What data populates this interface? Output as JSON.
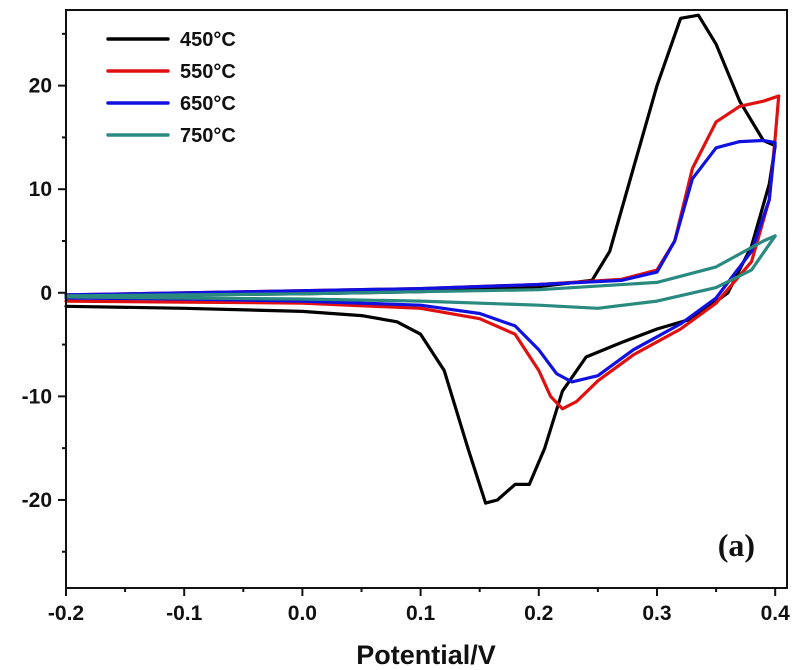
{
  "chart_data": {
    "type": "line",
    "title": "",
    "xlabel": "Potential/V",
    "ylabel": "",
    "panel_label": "(a)",
    "xlim": [
      -0.2,
      0.41
    ],
    "ylim": [
      -28.5,
      27.3
    ],
    "x_ticks": [
      -0.2,
      -0.1,
      0.0,
      0.1,
      0.2,
      0.3,
      0.4
    ],
    "x_tick_labels": [
      "-0.2",
      "-0.1",
      "0.0",
      "0.1",
      "0.2",
      "0.3",
      "0.4"
    ],
    "y_ticks": [
      -20,
      -10,
      0,
      10,
      20
    ],
    "y_tick_labels": [
      "-20",
      "-10",
      "0",
      "10",
      "20"
    ],
    "grid": false,
    "legend_position": "top-left",
    "series": [
      {
        "name": "450°C",
        "color": "#000000",
        "points": [
          [
            -0.2,
            -1.3
          ],
          [
            -0.1,
            -1.5
          ],
          [
            0.0,
            -1.8
          ],
          [
            0.05,
            -2.2
          ],
          [
            0.08,
            -2.8
          ],
          [
            0.1,
            -4.0
          ],
          [
            0.12,
            -7.5
          ],
          [
            0.14,
            -15.0
          ],
          [
            0.155,
            -20.3
          ],
          [
            0.165,
            -20.0
          ],
          [
            0.18,
            -18.5
          ],
          [
            0.192,
            -18.5
          ],
          [
            0.205,
            -15.0
          ],
          [
            0.22,
            -9.5
          ],
          [
            0.24,
            -6.2
          ],
          [
            0.27,
            -4.8
          ],
          [
            0.3,
            -3.5
          ],
          [
            0.33,
            -2.5
          ],
          [
            0.36,
            0.0
          ],
          [
            0.38,
            4.5
          ],
          [
            0.395,
            10.5
          ],
          [
            0.4,
            14.2
          ],
          [
            0.39,
            14.7
          ],
          [
            0.37,
            18.5
          ],
          [
            0.35,
            24.0
          ],
          [
            0.335,
            26.8
          ],
          [
            0.32,
            26.5
          ],
          [
            0.3,
            20.0
          ],
          [
            0.28,
            12.0
          ],
          [
            0.26,
            4.0
          ],
          [
            0.245,
            1.2
          ],
          [
            0.2,
            0.6
          ],
          [
            0.1,
            0.1
          ],
          [
            0.0,
            -0.1
          ],
          [
            -0.1,
            -0.2
          ],
          [
            -0.2,
            -0.3
          ]
        ]
      },
      {
        "name": "550°C",
        "color": "#e01010",
        "points": [
          [
            -0.2,
            -0.8
          ],
          [
            -0.1,
            -0.9
          ],
          [
            0.0,
            -1.0
          ],
          [
            0.1,
            -1.5
          ],
          [
            0.15,
            -2.5
          ],
          [
            0.18,
            -4.0
          ],
          [
            0.2,
            -7.5
          ],
          [
            0.21,
            -10.0
          ],
          [
            0.22,
            -11.2
          ],
          [
            0.232,
            -10.5
          ],
          [
            0.25,
            -8.5
          ],
          [
            0.28,
            -6.0
          ],
          [
            0.32,
            -3.5
          ],
          [
            0.35,
            -1.0
          ],
          [
            0.38,
            3.0
          ],
          [
            0.395,
            9.0
          ],
          [
            0.4,
            15.0
          ],
          [
            0.403,
            19.0
          ],
          [
            0.39,
            18.5
          ],
          [
            0.37,
            18.0
          ],
          [
            0.35,
            16.5
          ],
          [
            0.33,
            12.0
          ],
          [
            0.315,
            5.0
          ],
          [
            0.3,
            2.2
          ],
          [
            0.27,
            1.3
          ],
          [
            0.2,
            0.8
          ],
          [
            0.1,
            0.4
          ],
          [
            0.0,
            0.2
          ],
          [
            -0.1,
            0.0
          ],
          [
            -0.2,
            -0.2
          ]
        ]
      },
      {
        "name": "650°C",
        "color": "#1010e0",
        "points": [
          [
            -0.2,
            -0.5
          ],
          [
            -0.1,
            -0.6
          ],
          [
            0.0,
            -0.8
          ],
          [
            0.1,
            -1.2
          ],
          [
            0.15,
            -2.0
          ],
          [
            0.18,
            -3.2
          ],
          [
            0.2,
            -5.5
          ],
          [
            0.215,
            -7.8
          ],
          [
            0.228,
            -8.6
          ],
          [
            0.25,
            -8.0
          ],
          [
            0.28,
            -5.5
          ],
          [
            0.32,
            -3.0
          ],
          [
            0.35,
            -0.5
          ],
          [
            0.38,
            4.0
          ],
          [
            0.395,
            9.0
          ],
          [
            0.4,
            14.5
          ],
          [
            0.39,
            14.7
          ],
          [
            0.37,
            14.6
          ],
          [
            0.35,
            14.0
          ],
          [
            0.33,
            11.0
          ],
          [
            0.315,
            5.0
          ],
          [
            0.3,
            2.0
          ],
          [
            0.27,
            1.2
          ],
          [
            0.2,
            0.8
          ],
          [
            0.1,
            0.4
          ],
          [
            0.0,
            0.2
          ],
          [
            -0.1,
            0.0
          ],
          [
            -0.2,
            -0.2
          ]
        ]
      },
      {
        "name": "750°C",
        "color": "#2a8a80",
        "points": [
          [
            -0.2,
            -0.4
          ],
          [
            -0.1,
            -0.5
          ],
          [
            0.0,
            -0.6
          ],
          [
            0.1,
            -0.8
          ],
          [
            0.2,
            -1.2
          ],
          [
            0.25,
            -1.5
          ],
          [
            0.3,
            -0.8
          ],
          [
            0.35,
            0.5
          ],
          [
            0.38,
            2.2
          ],
          [
            0.4,
            5.5
          ],
          [
            0.39,
            5.0
          ],
          [
            0.35,
            2.5
          ],
          [
            0.3,
            1.0
          ],
          [
            0.2,
            0.3
          ],
          [
            0.1,
            0.1
          ],
          [
            0.0,
            -0.1
          ],
          [
            -0.1,
            -0.2
          ],
          [
            -0.2,
            -0.3
          ]
        ]
      }
    ]
  }
}
